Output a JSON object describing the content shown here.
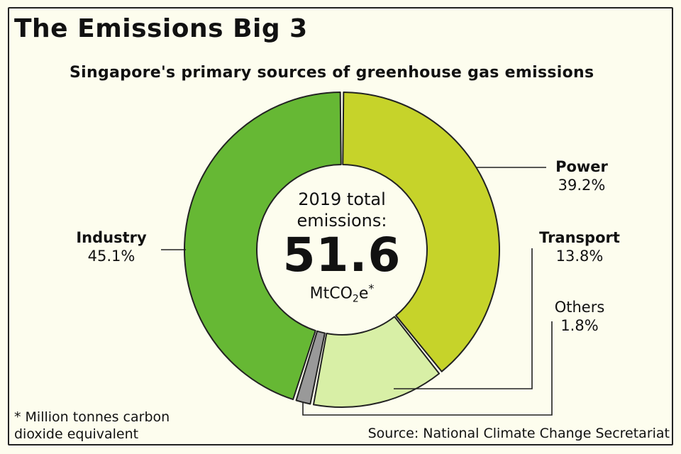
{
  "title": "The Emissions Big 3",
  "subtitle": "Singapore's primary sources of greenhouse gas emissions",
  "center": {
    "line1": "2019 total",
    "line2": "emissions:",
    "value": "51.6",
    "unit_main": "MtCO",
    "unit_sub": "2",
    "unit_end": "e",
    "unit_star": "*"
  },
  "segments": [
    {
      "name": "Power",
      "pct_label": "39.2%",
      "color": "#c6d32a"
    },
    {
      "name": "Transport",
      "pct_label": "13.8%",
      "color": "#d8efa6"
    },
    {
      "name": "Others",
      "pct_label": "1.8%",
      "color": "#999999"
    },
    {
      "name": "Industry",
      "pct_label": "45.1%",
      "color": "#66b834"
    }
  ],
  "footnote": {
    "line1": "* Million tonnes carbon",
    "line2": "dioxide equivalent"
  },
  "source": "Source: National Climate Change Secretariat",
  "chart_data": {
    "type": "pie",
    "title": "The Emissions Big 3",
    "subtitle": "Singapore's primary sources of greenhouse gas emissions",
    "categories": [
      "Power",
      "Transport",
      "Others",
      "Industry"
    ],
    "values": [
      39.2,
      13.8,
      1.8,
      45.1
    ],
    "unit": "%",
    "total": 51.6,
    "total_unit": "MtCO2e",
    "year": 2019,
    "donut": true,
    "colors": [
      "#c6d32a",
      "#d8efa6",
      "#999999",
      "#66b834"
    ],
    "annotations": [
      "2019 total emissions: 51.6 MtCO2e*",
      "* Million tonnes carbon dioxide equivalent",
      "Source: National Climate Change Secretariat"
    ]
  }
}
